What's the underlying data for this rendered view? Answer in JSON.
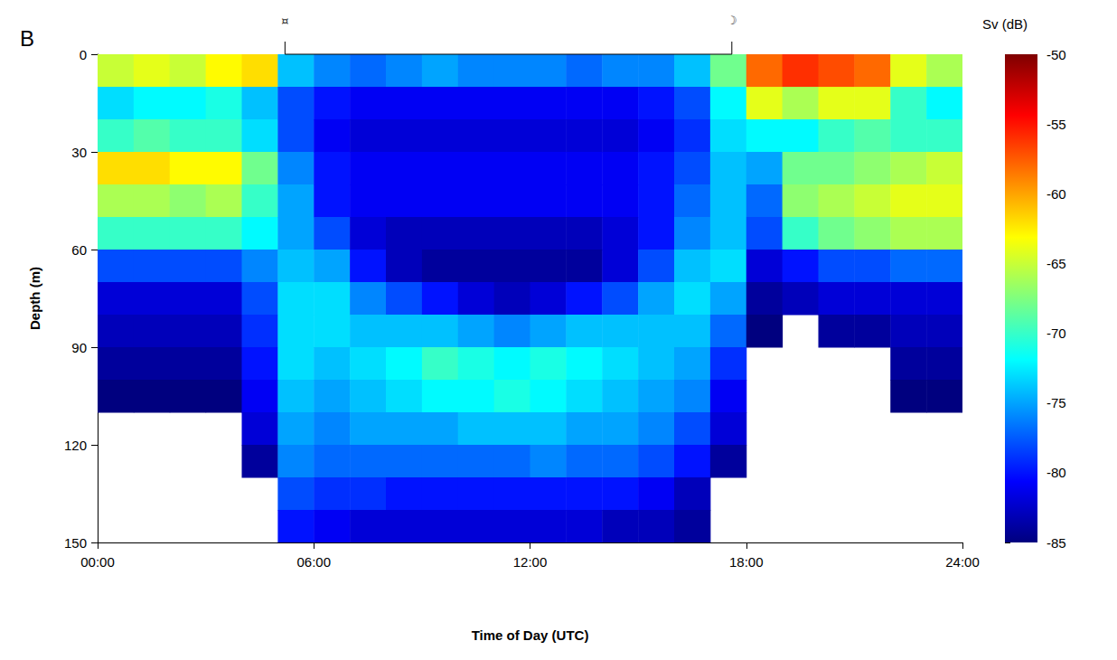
{
  "chart_data": {
    "type": "heatmap",
    "panel_label": "B",
    "x_label": "Time of Day (UTC)",
    "y_label": "Depth (m)",
    "xlim": [
      0,
      24
    ],
    "xticks": [
      {
        "value": 0,
        "label": "00:00"
      },
      {
        "value": 6,
        "label": "06:00"
      },
      {
        "value": 12,
        "label": "12:00"
      },
      {
        "value": 18,
        "label": "18:00"
      },
      {
        "value": 24,
        "label": "24:00"
      }
    ],
    "ylim": [
      0,
      150
    ],
    "yticks": [
      0,
      30,
      60,
      90,
      120,
      150
    ],
    "x": [
      0.5,
      1.5,
      2.5,
      3.5,
      4.5,
      5.5,
      6.5,
      7.5,
      8.5,
      9.5,
      10.5,
      11.5,
      12.5,
      13.5,
      14.5,
      15.5,
      16.5,
      17.5,
      18.5,
      19.5,
      20.5,
      21.5,
      22.5,
      23.5
    ],
    "y": [
      5,
      15,
      25,
      35,
      45,
      55,
      65,
      75,
      85,
      95,
      105,
      115,
      125,
      135,
      145
    ],
    "cells": [
      [
        -65,
        -64,
        -65,
        -63,
        -62,
        -74,
        -76,
        -77,
        -76,
        -75,
        -76,
        -76,
        -76,
        -77,
        -76,
        -76,
        -74,
        -68,
        -58,
        -56,
        -57,
        -58,
        -64,
        -66
      ],
      [
        -73,
        -72,
        -72,
        -71,
        -74,
        -78,
        -80,
        -81,
        -81,
        -81,
        -81,
        -81,
        -81,
        -81,
        -81,
        -80,
        -78,
        -72,
        -64,
        -66,
        -64,
        -64,
        -70,
        -72
      ],
      [
        -70,
        -69,
        -70,
        -70,
        -73,
        -78,
        -81,
        -82,
        -82,
        -82,
        -82,
        -82,
        -82,
        -82,
        -82,
        -81,
        -79,
        -73,
        -72,
        -72,
        -70,
        -69,
        -70,
        -70
      ],
      [
        -62,
        -62,
        -63,
        -63,
        -68,
        -76,
        -80,
        -81,
        -81,
        -81,
        -81,
        -81,
        -81,
        -81,
        -81,
        -80,
        -78,
        -74,
        -75,
        -68,
        -68,
        -67,
        -66,
        -65
      ],
      [
        -66,
        -66,
        -67,
        -66,
        -70,
        -75,
        -80,
        -81,
        -81,
        -81,
        -81,
        -81,
        -81,
        -81,
        -81,
        -80,
        -77,
        -74,
        -77,
        -67,
        -66,
        -65,
        -64,
        -64
      ],
      [
        -70,
        -70,
        -70,
        -70,
        -72,
        -75,
        -78,
        -82,
        -83,
        -83,
        -83,
        -83,
        -83,
        -83,
        -82,
        -80,
        -76,
        -74,
        -78,
        -70,
        -68,
        -67,
        -66,
        -66
      ],
      [
        -78,
        -78,
        -78,
        -78,
        -76,
        -74,
        -75,
        -80,
        -83,
        -84,
        -84,
        -84,
        -84,
        -84,
        -82,
        -78,
        -74,
        -73,
        -82,
        -80,
        -78,
        -78,
        -77,
        -77
      ],
      [
        -82,
        -82,
        -82,
        -82,
        -78,
        -73,
        -73,
        -76,
        -78,
        -80,
        -82,
        -83,
        -82,
        -80,
        -78,
        -75,
        -73,
        -75,
        -84,
        -83,
        -82,
        -82,
        -82,
        -82
      ],
      [
        -83,
        -83,
        -83,
        -83,
        -79,
        -73,
        -73,
        -74,
        -74,
        -74,
        -75,
        -76,
        -75,
        -74,
        -74,
        -74,
        -74,
        -77,
        -85,
        null,
        -84,
        -84,
        -83,
        -83
      ],
      [
        -84,
        -84,
        -84,
        -84,
        -80,
        -73,
        -74,
        -73,
        -72,
        -70,
        -71,
        -72,
        -71,
        -72,
        -73,
        -74,
        -75,
        -79,
        null,
        null,
        null,
        null,
        -84,
        -84
      ],
      [
        -85,
        -85,
        -85,
        -85,
        -81,
        -74,
        -75,
        -74,
        -73,
        -72,
        -72,
        -71,
        -72,
        -73,
        -74,
        -75,
        -76,
        -81,
        null,
        null,
        null,
        null,
        -85,
        -85
      ],
      [
        null,
        null,
        null,
        null,
        -82,
        -75,
        -76,
        -75,
        -75,
        -75,
        -74,
        -74,
        -74,
        -75,
        -75,
        -76,
        -78,
        -82,
        null,
        null,
        null,
        null,
        null,
        null
      ],
      [
        null,
        null,
        null,
        null,
        -84,
        -76,
        -77,
        -77,
        -77,
        -77,
        -77,
        -77,
        -76,
        -77,
        -77,
        -78,
        -80,
        -84,
        null,
        null,
        null,
        null,
        null,
        null
      ],
      [
        null,
        null,
        null,
        null,
        null,
        -78,
        -79,
        -79,
        -80,
        -80,
        -80,
        -80,
        -80,
        -80,
        -80,
        -81,
        -83,
        null,
        null,
        null,
        null,
        null,
        null,
        null
      ],
      [
        null,
        null,
        null,
        null,
        null,
        -80,
        -81,
        -82,
        -82,
        -82,
        -82,
        -82,
        -82,
        -82,
        -83,
        -83,
        -84,
        null,
        null,
        null,
        null,
        null,
        null,
        null
      ]
    ],
    "colorbar": {
      "title": "Sv (dB)",
      "lim": [
        -85,
        -50
      ],
      "ticks": [
        -85,
        -80,
        -75,
        -70,
        -65,
        -60,
        -55,
        -50
      ]
    },
    "annotations": [
      {
        "text": "¤",
        "x": 5.2
      },
      {
        "text": "☽",
        "x": 17.6
      }
    ]
  }
}
